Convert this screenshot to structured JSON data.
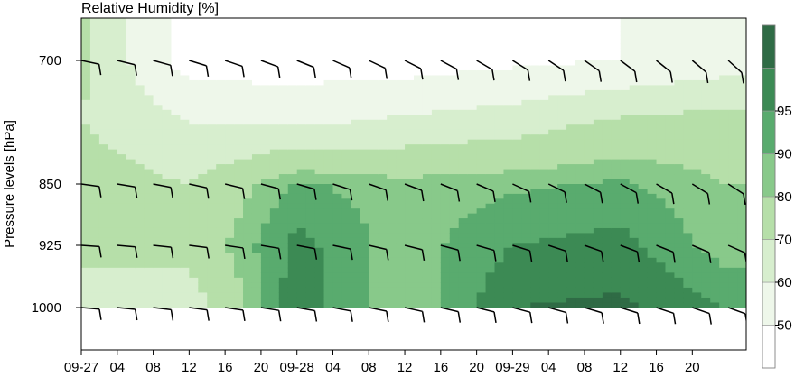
{
  "chart_data": {
    "type": "heatmap",
    "title": "Relative Humidity [%]",
    "ylabel": "Pressure levels [hPa]",
    "y_ticks": [
      700,
      850,
      925,
      1000
    ],
    "x_tick_labels": [
      "09-27",
      "04",
      "08",
      "12",
      "16",
      "20",
      "09-28",
      "04",
      "08",
      "12",
      "16",
      "20",
      "09-29",
      "04",
      "08",
      "12",
      "16",
      "20"
    ],
    "colorbar": {
      "levels": [
        40,
        50,
        60,
        70,
        80,
        90,
        100
      ],
      "tick_labels": [
        "50",
        "60",
        "70",
        "80",
        "90",
        "95"
      ],
      "colors": [
        "#ffffff",
        "#eef7ea",
        "#d7eece",
        "#b6dfa9",
        "#88c98a",
        "#59ab6e",
        "#3c8a54",
        "#2f6b45"
      ]
    },
    "levels_hPa": [
      700,
      850,
      925,
      1000
    ],
    "humidity_grid": {
      "x_hours": [
        0,
        12,
        24,
        36,
        48,
        60,
        72
      ],
      "rows": [
        {
          "p": 700,
          "values": [
            72,
            45,
            45,
            45,
            48,
            50,
            55
          ]
        },
        {
          "p": 775,
          "values": [
            70,
            60,
            58,
            62,
            65,
            72,
            74
          ]
        },
        {
          "p": 850,
          "values": [
            75,
            70,
            86,
            82,
            84,
            86,
            80
          ]
        },
        {
          "p": 925,
          "values": [
            72,
            74,
            92,
            82,
            90,
            92,
            82
          ]
        },
        {
          "p": 1000,
          "values": [
            66,
            64,
            94,
            80,
            95,
            96,
            90
          ]
        }
      ]
    },
    "wind_barbs_levels": [
      700,
      850,
      925,
      1000
    ]
  }
}
